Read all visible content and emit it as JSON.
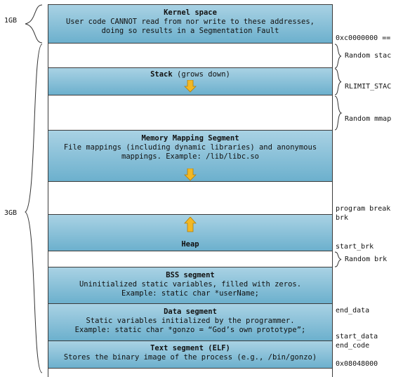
{
  "left_labels": {
    "kernel_size": "1GB",
    "user_size": "3GB"
  },
  "segments": {
    "kernel": {
      "title": "Kernel space",
      "line1": "User code CANNOT read from nor write to these addresses,",
      "line2": "doing so results in a Segmentation Fault"
    },
    "stack": {
      "title": "Stack",
      "suffix": " (grows down)"
    },
    "mmap": {
      "title": "Memory Mapping Segment",
      "line1": "File mappings (including dynamic libraries) and anonymous",
      "line2": "mappings. Example: /lib/libc.so"
    },
    "heap": {
      "title": "Heap"
    },
    "bss": {
      "title": "BSS segment",
      "line1": "Uninitialized static variables, filled with zeros.",
      "line2": "Example: static char *userName;"
    },
    "data": {
      "title": "Data segment",
      "line1": "Static variables initialized by the programmer.",
      "line2": "Example: static char *gonzo = “God’s own prototype”;"
    },
    "text": {
      "title": "Text segment (ELF)",
      "line1": "Stores the binary image of the process (e.g., /bin/gonzo)"
    }
  },
  "right_labels": {
    "kernel_addr": "0xc0000000 ==",
    "random_stack": "Random stac",
    "rlimit_stack": "RLIMIT_STAC",
    "random_mmap": "Random mmap",
    "program_break": "program break",
    "brk": "brk",
    "start_brk": "start_brk",
    "random_brk": "Random brk",
    "end_data": "end_data",
    "start_data": "start_data",
    "end_code": "end_code",
    "text_addr": "0x08048000"
  },
  "colors": {
    "segment_fill_top": "#a9d2e4",
    "segment_fill_bottom": "#6cb0cd",
    "arrow": "#f2b824"
  }
}
